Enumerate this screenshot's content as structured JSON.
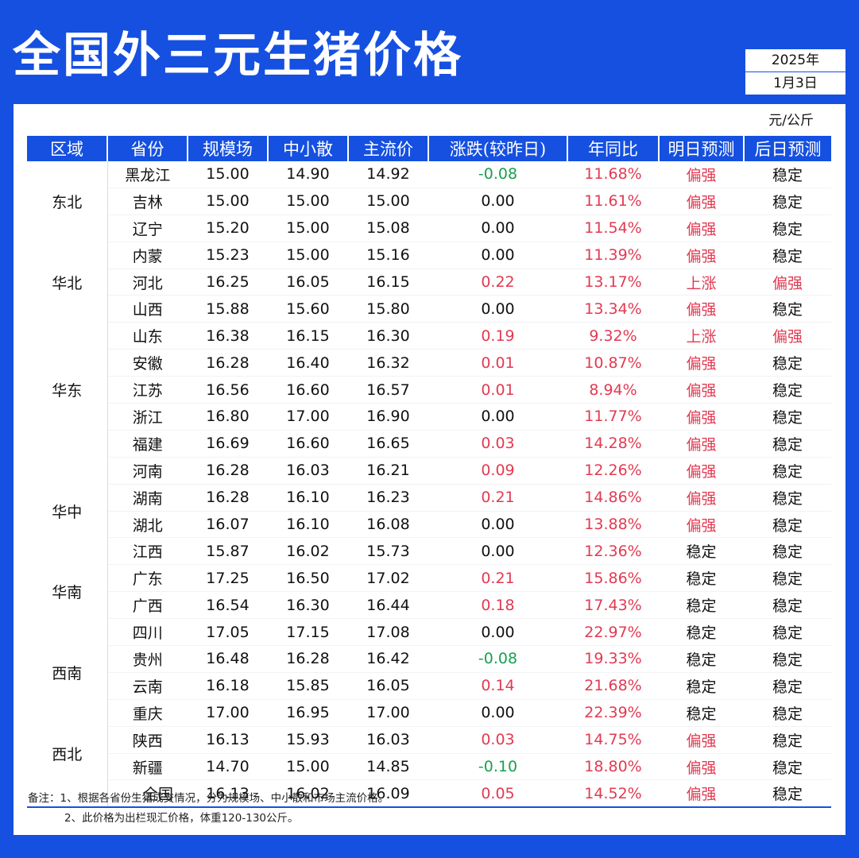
{
  "title": "全国外三元生猪价格",
  "date": {
    "year": "2025年",
    "day": "1月3日"
  },
  "unit": "元/公斤",
  "headers": [
    "区域",
    "省份",
    "规模场",
    "中小散",
    "主流价",
    "涨跌(较昨日)",
    "年同比",
    "明日预测",
    "后日预测"
  ],
  "colors": {
    "brand_blue": "#1550e0",
    "up_red": "#e23a52",
    "down_green": "#18a050"
  },
  "regions": [
    {
      "name": "东北",
      "rows": [
        [
          "黑龙江",
          "15.00",
          "14.90",
          "14.92",
          "-0.08",
          "11.68%",
          "偏强",
          "稳定"
        ],
        [
          "吉林",
          "15.00",
          "15.00",
          "15.00",
          "0.00",
          "11.61%",
          "偏强",
          "稳定"
        ],
        [
          "辽宁",
          "15.20",
          "15.00",
          "15.08",
          "0.00",
          "11.54%",
          "偏强",
          "稳定"
        ]
      ]
    },
    {
      "name": "华北",
      "rows": [
        [
          "内蒙",
          "15.23",
          "15.00",
          "15.16",
          "0.00",
          "11.39%",
          "偏强",
          "稳定"
        ],
        [
          "河北",
          "16.25",
          "16.05",
          "16.15",
          "0.22",
          "13.17%",
          "上涨",
          "偏强"
        ],
        [
          "山西",
          "15.88",
          "15.60",
          "15.80",
          "0.00",
          "13.34%",
          "偏强",
          "稳定"
        ]
      ]
    },
    {
      "name": "华东",
      "rows": [
        [
          "山东",
          "16.38",
          "16.15",
          "16.30",
          "0.19",
          "9.32%",
          "上涨",
          "偏强"
        ],
        [
          "安徽",
          "16.28",
          "16.40",
          "16.32",
          "0.01",
          "10.87%",
          "偏强",
          "稳定"
        ],
        [
          "江苏",
          "16.56",
          "16.60",
          "16.57",
          "0.01",
          "8.94%",
          "偏强",
          "稳定"
        ],
        [
          "浙江",
          "16.80",
          "17.00",
          "16.90",
          "0.00",
          "11.77%",
          "偏强",
          "稳定"
        ],
        [
          "福建",
          "16.69",
          "16.60",
          "16.65",
          "0.03",
          "14.28%",
          "偏强",
          "稳定"
        ]
      ]
    },
    {
      "name": "华中",
      "rows": [
        [
          "河南",
          "16.28",
          "16.03",
          "16.21",
          "0.09",
          "12.26%",
          "偏强",
          "稳定"
        ],
        [
          "湖南",
          "16.28",
          "16.10",
          "16.23",
          "0.21",
          "14.86%",
          "偏强",
          "稳定"
        ],
        [
          "湖北",
          "16.07",
          "16.10",
          "16.08",
          "0.00",
          "13.88%",
          "偏强",
          "稳定"
        ],
        [
          "江西",
          "15.87",
          "16.02",
          "15.73",
          "0.00",
          "12.36%",
          "稳定",
          "稳定"
        ]
      ]
    },
    {
      "name": "华南",
      "rows": [
        [
          "广东",
          "17.25",
          "16.50",
          "17.02",
          "0.21",
          "15.86%",
          "稳定",
          "稳定"
        ],
        [
          "广西",
          "16.54",
          "16.30",
          "16.44",
          "0.18",
          "17.43%",
          "稳定",
          "稳定"
        ]
      ]
    },
    {
      "name": "西南",
      "rows": [
        [
          "四川",
          "17.05",
          "17.15",
          "17.08",
          "0.00",
          "22.97%",
          "稳定",
          "稳定"
        ],
        [
          "贵州",
          "16.48",
          "16.28",
          "16.42",
          "-0.08",
          "19.33%",
          "稳定",
          "稳定"
        ],
        [
          "云南",
          "16.18",
          "15.85",
          "16.05",
          "0.14",
          "21.68%",
          "稳定",
          "稳定"
        ],
        [
          "重庆",
          "17.00",
          "16.95",
          "17.00",
          "0.00",
          "22.39%",
          "稳定",
          "稳定"
        ]
      ]
    },
    {
      "name": "西北",
      "rows": [
        [
          "陕西",
          "16.13",
          "15.93",
          "16.03",
          "0.03",
          "14.75%",
          "偏强",
          "稳定"
        ],
        [
          "新疆",
          "14.70",
          "15.00",
          "14.85",
          "-0.10",
          "18.80%",
          "偏强",
          "稳定"
        ]
      ]
    }
  ],
  "total": [
    "全国",
    "16.13",
    "16.02",
    "16.09",
    "0.05",
    "14.52%",
    "偏强",
    "稳定"
  ],
  "notes": [
    "备注：1、根据各省份生猪成交情况，分为规模场、中小散和市场主流价格。",
    "2、此价格为出栏现汇价格，体重120-130公斤。"
  ]
}
